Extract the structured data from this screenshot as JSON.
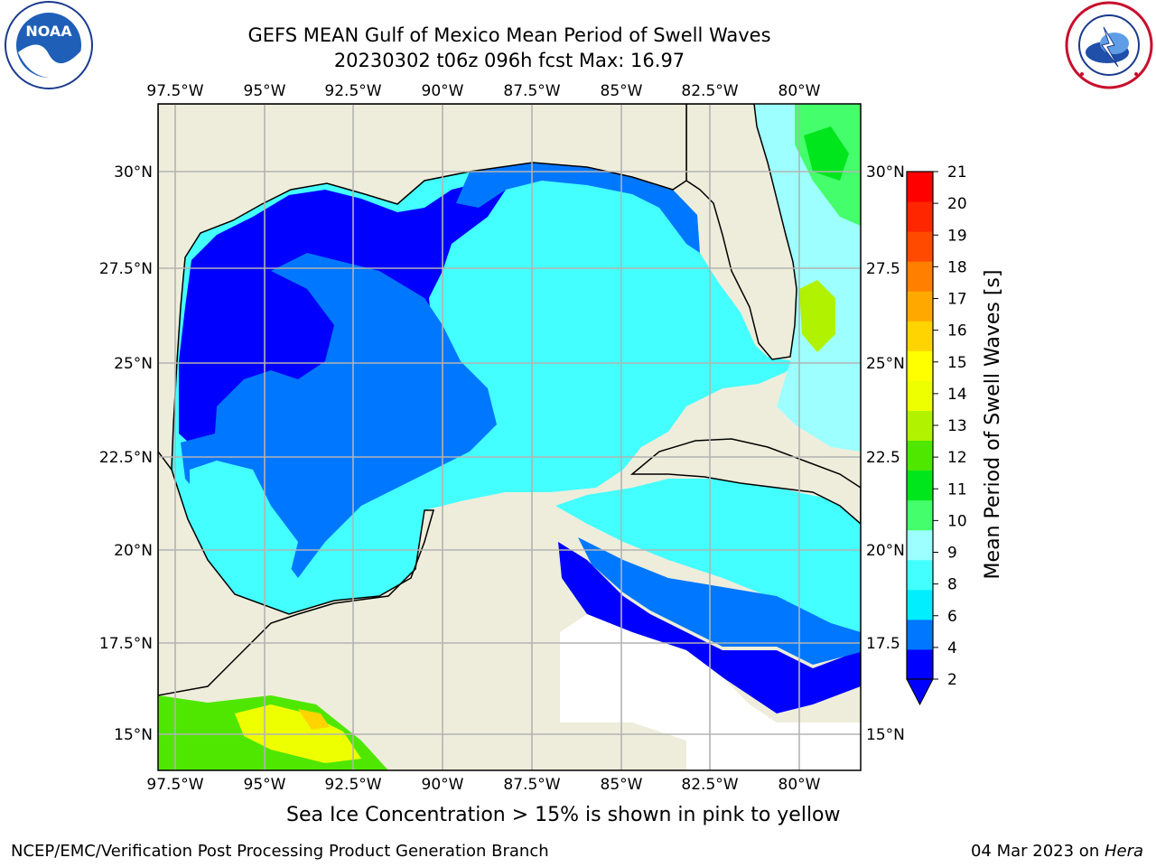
{
  "header": {
    "title": "GEFS MEAN Gulf of Mexico Mean Period of Swell Waves",
    "subtitle": "20230302 t06z 096h fcst   Max: 16.97"
  },
  "logos": {
    "left": {
      "text": "NOAA",
      "ring_text": "NATIONAL OCEANIC AND ATMOSPHERIC ADMINISTRATION · U.S. DEPARTMENT OF COMMERCE"
    },
    "right": {
      "ring_text": "NATIONAL WEATHER SERVICE"
    }
  },
  "map": {
    "lon_labels": [
      "97.5°W",
      "95°W",
      "92.5°W",
      "90°W",
      "87.5°W",
      "85°W",
      "82.5°W",
      "80°W"
    ],
    "lat_labels_left": [
      "30°N",
      "27.5°N",
      "25°N",
      "22.5°N",
      "20°N",
      "17.5°N",
      "15°N"
    ],
    "lat_labels_right": [
      "30°N",
      "27.5",
      "25°N",
      "22.5",
      "20°N",
      "17.5",
      "15°N"
    ],
    "colors": {
      "land": "#eeeddb",
      "grid": "#b3b3b3",
      "coast": "#000000"
    }
  },
  "colorbar": {
    "label": "Mean Period of Swell Waves [s]",
    "ticks": [
      "2",
      "4",
      "6",
      "8",
      "9",
      "10",
      "11",
      "12",
      "13",
      "14",
      "15",
      "16",
      "17",
      "18",
      "19",
      "20",
      "21"
    ],
    "bands": [
      "#0000ff",
      "#0077ff",
      "#00eeff",
      "#44ffff",
      "#9dffff",
      "#44ff6b",
      "#00e61d",
      "#4fe700",
      "#b0f200",
      "#eeff00",
      "#ffff00",
      "#ffd400",
      "#ffa900",
      "#ff7f00",
      "#ff4a00",
      "#ff2600",
      "#ff0000"
    ],
    "extend_color": "#0000ff"
  },
  "footer": {
    "ice_note": "Sea Ice Concentration > 15% is shown in pink to yellow",
    "credit_left": "NCEP/EMC/Verification Post Processing Product Generation Branch",
    "credit_date": "04 Mar 2023 on ",
    "credit_host": "Hera"
  }
}
